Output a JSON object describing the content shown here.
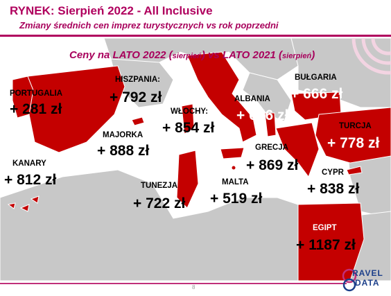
{
  "header": {
    "title": "RYNEK: Sierpień 2022 - All Inclusive",
    "subtitle": "Zmiany średnich cen imprez turystycznych vs rok poprzedni"
  },
  "caption": {
    "part1": "Ceny na LATO 2022 (",
    "part1_small": "sierpień",
    "part2": ") vs  LATO 2021 (",
    "part2_small": "sierpień",
    "part3": ")"
  },
  "destinations": [
    {
      "name": "PORTUGALIA",
      "value": "+ 281 zł"
    },
    {
      "name": "HISZPANIA:",
      "value": "+ 792 zł"
    },
    {
      "name": "WŁOCHY:",
      "value": "+ 854 zł"
    },
    {
      "name": "MAJORKA",
      "value": "+ 888 zł"
    },
    {
      "name": "ALBANIA",
      "value": "+ 676 zł"
    },
    {
      "name": "BUŁGARIA",
      "value": "+ 666 zł"
    },
    {
      "name": "TURCJA",
      "value": "+ 778 zł"
    },
    {
      "name": "GRECJA",
      "value": "+ 869 zł"
    },
    {
      "name": "CYPR",
      "value": "+ 838 zł"
    },
    {
      "name": "KANARY",
      "value": "+ 812 zł"
    },
    {
      "name": "TUNEZJA",
      "value": "+ 722 zł"
    },
    {
      "name": "MALTA",
      "value": "+ 519 zł"
    },
    {
      "name": "EGIPT",
      "value": "+ 1187 zł"
    }
  ],
  "footer": {
    "page_number": "8",
    "logo_line1": "RAVEL",
    "logo_line2": "DATA"
  },
  "colors": {
    "brand": "#b0005e",
    "highlight_country": "#c40000",
    "land": "#c8c8c8",
    "sea": "#ffffff"
  }
}
